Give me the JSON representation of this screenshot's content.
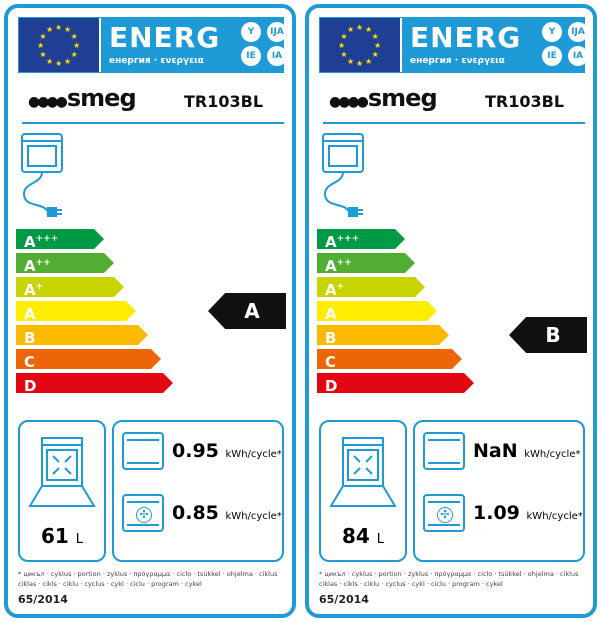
{
  "header": {
    "energ": "ENERG",
    "subtitle": "енергия · ενεργεια",
    "lang_codes": [
      "Y",
      "IJA",
      "IE",
      "IA"
    ]
  },
  "colors": {
    "border": "#1e9bd7",
    "classes": [
      "#009a44",
      "#52ae32",
      "#c8d400",
      "#ffed00",
      "#fbba00",
      "#ec6608",
      "#e30613"
    ]
  },
  "classes": [
    {
      "letter": "A",
      "plus": "+++"
    },
    {
      "letter": "A",
      "plus": "++"
    },
    {
      "letter": "A",
      "plus": "+"
    },
    {
      "letter": "A",
      "plus": ""
    },
    {
      "letter": "B",
      "plus": ""
    },
    {
      "letter": "C",
      "plus": ""
    },
    {
      "letter": "D",
      "plus": ""
    }
  ],
  "footnote": "* цикъл · cyklus · portion · zyklus · πρόγραμμα · ciclo · tsükkel · ohjelma · ciklus ciklas · cikls · ciklu · cyclus · cykl · ciclu · program · cykel",
  "regulation": "65/2014",
  "unit_energy": "kWh/cycle*",
  "unit_volume": "L",
  "labels": [
    {
      "brand": "smeg",
      "model": "TR103BL",
      "rating": "A",
      "rating_index": 3,
      "volume": "61",
      "conventional": "0.95",
      "fan": "0.85"
    },
    {
      "brand": "smeg",
      "model": "TR103BL",
      "rating": "B",
      "rating_index": 4,
      "volume": "84",
      "conventional": "NaN",
      "fan": "1.09"
    }
  ]
}
